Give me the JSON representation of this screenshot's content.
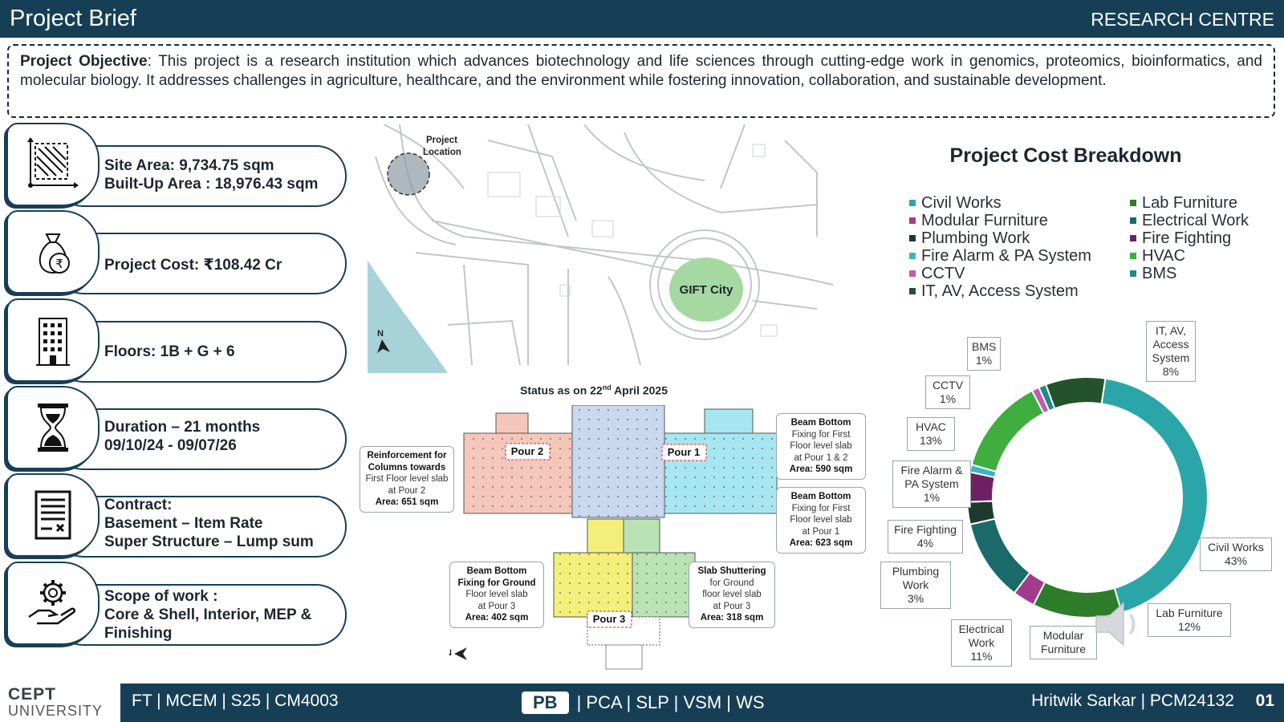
{
  "header": {
    "title": "Project Brief",
    "right_label": "RESEARCH CENTRE"
  },
  "objective": {
    "label": "Project Objective",
    "text": ": This project is a research institution which advances biotechnology and life sciences through cutting-edge work in genomics, proteomics, bioinformatics, and molecular biology. It addresses challenges in agriculture, healthcare, and the environment while fostering innovation, collaboration, and sustainable development."
  },
  "cards": [
    {
      "icon": "site-area-icon",
      "lines": [
        "Site Area: 9,734.75 sqm",
        "Built-Up Area : 18,976.43 sqm"
      ]
    },
    {
      "icon": "money-bag-icon",
      "lines": [
        "Project Cost: ₹108.42 Cr"
      ]
    },
    {
      "icon": "building-icon",
      "lines": [
        "Floors: 1B + G + 6"
      ]
    },
    {
      "icon": "hourglass-icon",
      "lines": [
        "Duration – 21 months",
        "09/10/24 - 09/07/26"
      ]
    },
    {
      "icon": "contract-document-icon",
      "lines": [
        "Contract:",
        "Basement – Item Rate",
        "Super Structure – Lump sum"
      ]
    },
    {
      "icon": "gear-hand-icon",
      "lines": [
        "Scope of work :",
        "Core & Shell, Interior, MEP &",
        "Finishing"
      ]
    }
  ],
  "map": {
    "project_location": [
      "Project",
      "Location"
    ],
    "city_label": "GIFT City",
    "north": "N"
  },
  "status": {
    "title_prefix": "Status as on 22",
    "title_sup": "nd",
    "title_suffix": " April 2025",
    "pours": [
      "Pour 2",
      "Pour 1",
      "Pour 3"
    ],
    "north": "N",
    "notes": [
      {
        "lines": [
          "Reinforcement for",
          "Columns towards",
          "First Floor level slab",
          "at Pour 2",
          "Area: 651 sqm"
        ]
      },
      {
        "lines": [
          "Beam Bottom",
          "Fixing for First",
          "Floor level slab",
          "at Pour 1 & 2",
          "Area: 590 sqm"
        ]
      },
      {
        "lines": [
          "Beam Bottom",
          "Fixing for First",
          "Floor level slab",
          "at Pour 1",
          "Area: 623 sqm"
        ]
      },
      {
        "lines": [
          "Beam Bottom",
          "Fixing for Ground",
          "Floor level slab",
          "at Pour 3",
          "Area: 402 sqm"
        ]
      },
      {
        "lines": [
          "Slab Shuttering",
          "for Ground",
          "floor level slab",
          "at Pour 3",
          "Area: 318 sqm"
        ]
      }
    ]
  },
  "cost": {
    "title": "Project Cost Breakdown",
    "legend_left": [
      "Civil Works",
      "Modular Furniture",
      "Plumbing Work",
      "Fire Alarm & PA System",
      "CCTV",
      "IT, AV, Access System"
    ],
    "legend_right": [
      "Lab Furniture",
      "Electrical Work",
      "Fire Fighting",
      "HVAC",
      "BMS"
    ],
    "callouts": {
      "bms": [
        "BMS",
        "1%"
      ],
      "it": [
        "IT, AV,",
        "Access",
        "System",
        "8%"
      ],
      "cctv": [
        "CCTV",
        "1%"
      ],
      "hvac": [
        "HVAC",
        "13%"
      ],
      "fire_alarm": [
        "Fire Alarm &",
        "PA System",
        "1%"
      ],
      "fire_fighting": [
        "Fire Fighting",
        "4%"
      ],
      "plumbing": [
        "Plumbing",
        "Work",
        "3%"
      ],
      "electrical": [
        "Electrical",
        "Work",
        "11%"
      ],
      "modular": [
        "Modular",
        "Furniture"
      ],
      "lab": [
        "Lab Furniture",
        "12%"
      ],
      "civil": [
        "Civil Works",
        "43%"
      ]
    }
  },
  "chart_data": {
    "type": "pie",
    "title": "Project Cost Breakdown",
    "categories": [
      "Civil Works",
      "Lab Furniture",
      "Modular Furniture",
      "Electrical Work",
      "Plumbing Work",
      "Fire Fighting",
      "Fire Alarm & PA System",
      "HVAC",
      "CCTV",
      "BMS",
      "IT, AV, Access System"
    ],
    "values": [
      43,
      12,
      3,
      11,
      3,
      4,
      1,
      13,
      1,
      1,
      8
    ],
    "colors": [
      "#2aa6a8",
      "#2e7d2a",
      "#a23b8e",
      "#1a6a6a",
      "#1d3a2c",
      "#6d2163",
      "#3bb3c8",
      "#3fae3f",
      "#c25bb0",
      "#1d8a8a",
      "#24532b"
    ],
    "legend": "top"
  },
  "footer": {
    "logo_top": "CEPT",
    "logo_bottom": "UNIVERSITY",
    "left": "FT | MCEM | S25 | CM4003",
    "nav_active": "PB",
    "nav_rest": "| PCA | SLP | VSM | WS",
    "author": "Hritwik Sarkar | PCM24132",
    "page": "01"
  }
}
